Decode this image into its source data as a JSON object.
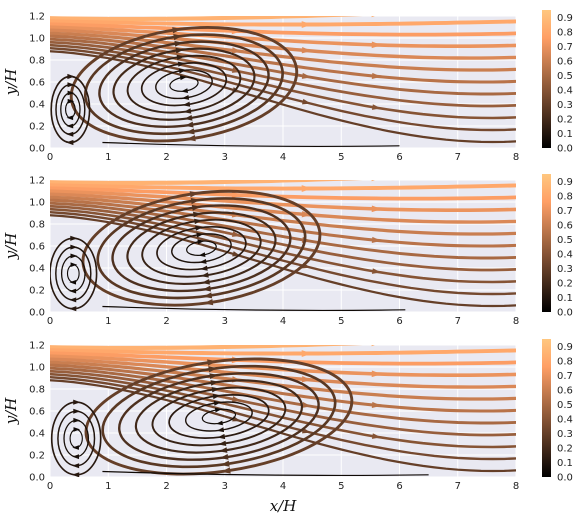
{
  "chart_data": [
    {
      "type": "streamplot",
      "xlabel": "",
      "ylabel": "y/H",
      "xlim": [
        0,
        8
      ],
      "ylim": [
        0,
        1.2
      ],
      "xticks": [
        "0",
        "1",
        "2",
        "3",
        "4",
        "5",
        "6",
        "7",
        "8"
      ],
      "yticks": [
        "0.0",
        "0.2",
        "0.4",
        "0.6",
        "0.8",
        "1.0",
        "1.2"
      ],
      "colorbar": {
        "ticks": [
          "0.0",
          "0.1",
          "0.2",
          "0.3",
          "0.4",
          "0.5",
          "0.6",
          "0.7",
          "0.8",
          "0.9"
        ],
        "range": [
          0,
          0.95
        ],
        "colormap": "copper"
      },
      "vortices": [
        {
          "role": "primary",
          "center": [
            2.3,
            0.58
          ],
          "radius": [
            1.95,
            0.5
          ]
        },
        {
          "role": "corner",
          "center": [
            0.35,
            0.35
          ],
          "radius": [
            0.33,
            0.3
          ]
        }
      ],
      "reattachment_x": 6.0,
      "grid": true
    },
    {
      "type": "streamplot",
      "xlabel": "",
      "ylabel": "y/H",
      "xlim": [
        0,
        8
      ],
      "ylim": [
        0,
        1.2
      ],
      "xticks": [
        "0",
        "1",
        "2",
        "3",
        "4",
        "5",
        "6",
        "7",
        "8"
      ],
      "yticks": [
        "0.0",
        "0.2",
        "0.4",
        "0.6",
        "0.8",
        "1.0",
        "1.2"
      ],
      "colorbar": {
        "ticks": [
          "0.0",
          "0.1",
          "0.2",
          "0.3",
          "0.4",
          "0.5",
          "0.6",
          "0.7",
          "0.8",
          "0.9"
        ],
        "range": [
          0,
          0.95
        ],
        "colormap": "copper"
      },
      "vortices": [
        {
          "role": "primary",
          "center": [
            2.6,
            0.58
          ],
          "radius": [
            2.05,
            0.5
          ]
        },
        {
          "role": "corner",
          "center": [
            0.4,
            0.35
          ],
          "radius": [
            0.4,
            0.32
          ]
        }
      ],
      "reattachment_x": 6.1,
      "grid": true
    },
    {
      "type": "streamplot",
      "xlabel": "x/H",
      "ylabel": "y/H",
      "xlim": [
        0,
        8
      ],
      "ylim": [
        0,
        1.2
      ],
      "xticks": [
        "0",
        "1",
        "2",
        "3",
        "4",
        "5",
        "6",
        "7",
        "8"
      ],
      "yticks": [
        "0.0",
        "0.2",
        "0.4",
        "0.6",
        "0.8",
        "1.0",
        "1.2"
      ],
      "colorbar": {
        "ticks": [
          "0.0",
          "0.1",
          "0.2",
          "0.3",
          "0.4",
          "0.5",
          "0.6",
          "0.7",
          "0.8",
          "0.9"
        ],
        "range": [
          0,
          0.95
        ],
        "colormap": "copper"
      },
      "vortices": [
        {
          "role": "primary",
          "center": [
            2.9,
            0.55
          ],
          "radius": [
            2.3,
            0.5
          ]
        },
        {
          "role": "corner",
          "center": [
            0.45,
            0.35
          ],
          "radius": [
            0.42,
            0.33
          ]
        }
      ],
      "reattachment_x": 6.5,
      "grid": true
    }
  ]
}
